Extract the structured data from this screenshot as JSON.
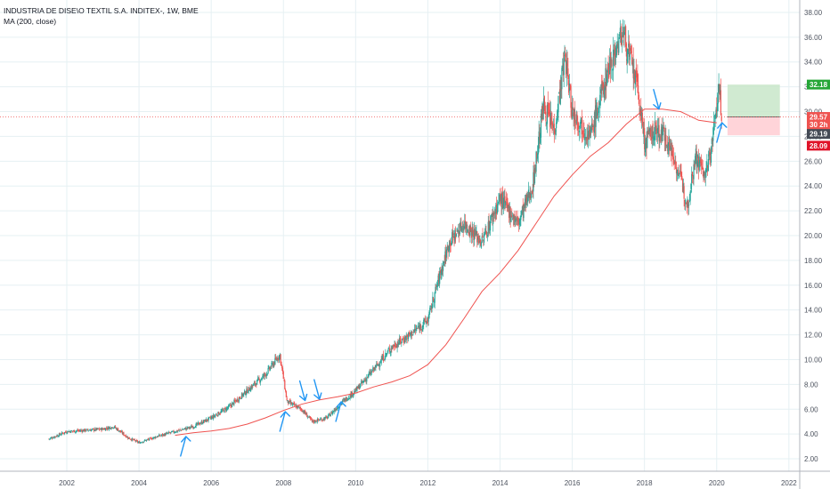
{
  "legend": {
    "title": "INDUSTRIA DE DISE\\O TEXTIL S.A. INDITEX-, 1W, BME",
    "indicator": "MA (200, close)"
  },
  "colors": {
    "up": "#26a69a",
    "down": "#ef5350",
    "ma": "#ef5350",
    "arrow": "#2196f3",
    "grid": "#e6f0f3",
    "reward": "#c8e6c9",
    "risk": "#ffcdd2",
    "price_line": "#ef5350",
    "target_tag": "#26a637",
    "price_tag": "#ef5350",
    "stop_tag": "#e0142a",
    "dark_tag": "#454b56"
  },
  "chart_data": {
    "type": "candlestick",
    "x_ticks": [
      "2002",
      "2004",
      "2006",
      "2008",
      "2010",
      "2012",
      "2014",
      "2016",
      "2018",
      "2020",
      "2022"
    ],
    "y_ticks": [
      "2.00",
      "4.00",
      "6.00",
      "8.00",
      "10.00",
      "12.00",
      "14.00",
      "16.00",
      "18.00",
      "20.00",
      "22.00",
      "24.00",
      "26.00",
      "28.00",
      "30.00",
      "32.00",
      "34.00",
      "36.00",
      "38.00"
    ],
    "ylim": [
      1.0,
      39.0
    ],
    "xlim": [
      2000.15,
      2022.3
    ],
    "close_path": [
      [
        2001.5,
        3.6
      ],
      [
        2002.0,
        4.2
      ],
      [
        2002.5,
        4.3
      ],
      [
        2003.0,
        4.4
      ],
      [
        2003.3,
        4.6
      ],
      [
        2003.7,
        3.7
      ],
      [
        2004.0,
        3.3
      ],
      [
        2004.5,
        3.8
      ],
      [
        2005.0,
        4.2
      ],
      [
        2005.5,
        4.6
      ],
      [
        2006.0,
        5.3
      ],
      [
        2006.5,
        6.2
      ],
      [
        2007.0,
        7.5
      ],
      [
        2007.5,
        8.8
      ],
      [
        2007.9,
        10.4
      ],
      [
        2008.1,
        6.6
      ],
      [
        2008.5,
        6.0
      ],
      [
        2008.8,
        5.0
      ],
      [
        2009.2,
        5.3
      ],
      [
        2009.6,
        6.5
      ],
      [
        2010.0,
        7.5
      ],
      [
        2010.5,
        9.2
      ],
      [
        2011.0,
        11.0
      ],
      [
        2011.5,
        12.0
      ],
      [
        2012.0,
        13.2
      ],
      [
        2012.3,
        16.5
      ],
      [
        2012.6,
        19.5
      ],
      [
        2013.0,
        21.0
      ],
      [
        2013.5,
        19.5
      ],
      [
        2014.0,
        23.0
      ],
      [
        2014.5,
        21.0
      ],
      [
        2014.9,
        24.0
      ],
      [
        2015.2,
        30.5
      ],
      [
        2015.5,
        28.5
      ],
      [
        2015.8,
        34.5
      ],
      [
        2016.0,
        30.0
      ],
      [
        2016.5,
        28.0
      ],
      [
        2017.0,
        33.5
      ],
      [
        2017.4,
        36.5
      ],
      [
        2017.8,
        32.0
      ],
      [
        2018.0,
        27.5
      ],
      [
        2018.3,
        28.5
      ],
      [
        2018.6,
        28.0
      ],
      [
        2018.9,
        25.5
      ],
      [
        2019.2,
        22.5
      ],
      [
        2019.4,
        26.5
      ],
      [
        2019.7,
        24.8
      ],
      [
        2019.9,
        28.0
      ],
      [
        2020.05,
        32.0
      ],
      [
        2020.15,
        29.6
      ]
    ],
    "ma_path": [
      [
        2005.0,
        3.9
      ],
      [
        2005.5,
        4.1
      ],
      [
        2006.0,
        4.25
      ],
      [
        2006.5,
        4.45
      ],
      [
        2007.0,
        4.8
      ],
      [
        2007.5,
        5.3
      ],
      [
        2008.0,
        5.9
      ],
      [
        2008.5,
        6.4
      ],
      [
        2009.0,
        6.75
      ],
      [
        2009.5,
        7.0
      ],
      [
        2010.0,
        7.3
      ],
      [
        2010.5,
        7.8
      ],
      [
        2011.0,
        8.2
      ],
      [
        2011.5,
        8.7
      ],
      [
        2012.0,
        9.6
      ],
      [
        2012.5,
        11.2
      ],
      [
        2013.0,
        13.3
      ],
      [
        2013.5,
        15.5
      ],
      [
        2014.0,
        17.0
      ],
      [
        2014.5,
        18.8
      ],
      [
        2015.0,
        21.0
      ],
      [
        2015.5,
        23.2
      ],
      [
        2016.0,
        24.9
      ],
      [
        2016.5,
        26.4
      ],
      [
        2017.0,
        27.5
      ],
      [
        2017.5,
        29.0
      ],
      [
        2018.0,
        30.2
      ],
      [
        2018.5,
        30.2
      ],
      [
        2019.0,
        30.0
      ],
      [
        2019.5,
        29.3
      ],
      [
        2020.0,
        29.1
      ]
    ],
    "arrows": [
      {
        "x": 2005.3,
        "y": 3.8,
        "dir": "up"
      },
      {
        "x": 2008.05,
        "y": 5.8,
        "dir": "up"
      },
      {
        "x": 2008.6,
        "y": 6.7,
        "dir": "down"
      },
      {
        "x": 2009.0,
        "y": 6.8,
        "dir": "down"
      },
      {
        "x": 2009.6,
        "y": 6.6,
        "dir": "up"
      },
      {
        "x": 2018.4,
        "y": 30.2,
        "dir": "down"
      },
      {
        "x": 2020.15,
        "y": 29.1,
        "dir": "up"
      }
    ],
    "position": {
      "x_start": 2020.3,
      "x_end": 2021.75,
      "target": 32.18,
      "entry": 29.57,
      "stop": 28.09
    },
    "price_line": 29.57,
    "price_tags": [
      {
        "label": "32.18",
        "value": 32.18,
        "kind": "target"
      },
      {
        "label": "29.57",
        "value": 29.57,
        "kind": "price"
      },
      {
        "label": "30 2h",
        "value": 28.95,
        "kind": "price"
      },
      {
        "label": "29.19",
        "value": 28.2,
        "kind": "dark"
      },
      {
        "label": "28.09",
        "value": 27.25,
        "kind": "stop"
      }
    ]
  }
}
